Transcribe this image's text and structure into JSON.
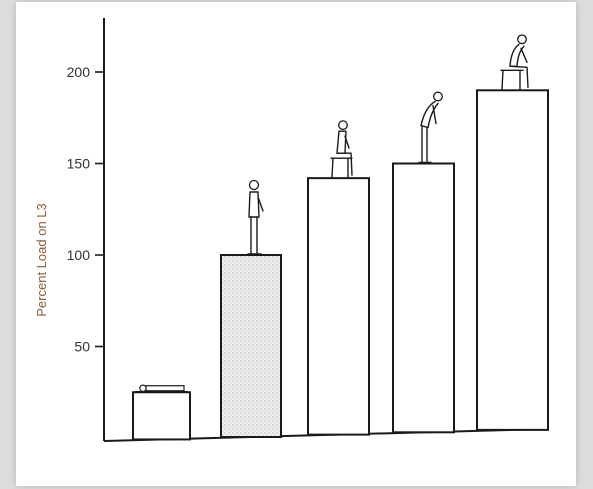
{
  "chart_data": {
    "type": "bar",
    "title": "",
    "xlabel": "",
    "ylabel": "Percent Load on L3",
    "ylim": [
      0,
      235
    ],
    "yticks": [
      50,
      100,
      150,
      200
    ],
    "grid": false,
    "categories": [
      "lying",
      "standing",
      "sitting upright",
      "standing bent forward",
      "sitting bent forward"
    ],
    "values": [
      25,
      100,
      142,
      150,
      190
    ],
    "bar_fill": [
      "#ffffff",
      "#e8e8e8",
      "#ffffff",
      "#ffffff",
      "#ffffff"
    ],
    "icons": [
      "lying-figure-icon",
      "standing-figure-icon",
      "sitting-upright-figure-icon",
      "standing-bent-figure-icon",
      "sitting-bent-figure-icon"
    ]
  },
  "colors": {
    "ink": "#1a1a1a",
    "ylabel": "#8a5a3a",
    "paper": "#ffffff",
    "frame": "#dcdcdc"
  }
}
